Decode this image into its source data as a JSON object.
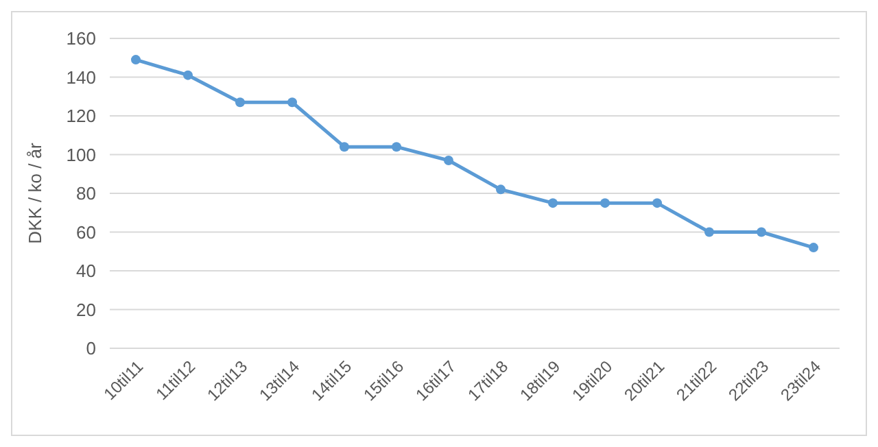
{
  "chart_data": {
    "type": "line",
    "ylabel": "DKK / ko / år",
    "categories": [
      "10til11",
      "11til12",
      "12til13",
      "13til14",
      "14til15",
      "15til16",
      "16til17",
      "17til18",
      "18til19",
      "19til20",
      "20til21",
      "21til22",
      "22til23",
      "23til24"
    ],
    "series": [
      {
        "color": "#5b9bd5",
        "values": [
          149,
          141,
          127,
          127,
          104,
          104,
          97,
          82,
          75,
          75,
          75,
          60,
          60,
          52
        ]
      }
    ],
    "ylim": [
      0,
      160
    ],
    "yticks": [
      0,
      20,
      40,
      60,
      80,
      100,
      120,
      140,
      160
    ],
    "grid": "y",
    "marker": "circle"
  }
}
